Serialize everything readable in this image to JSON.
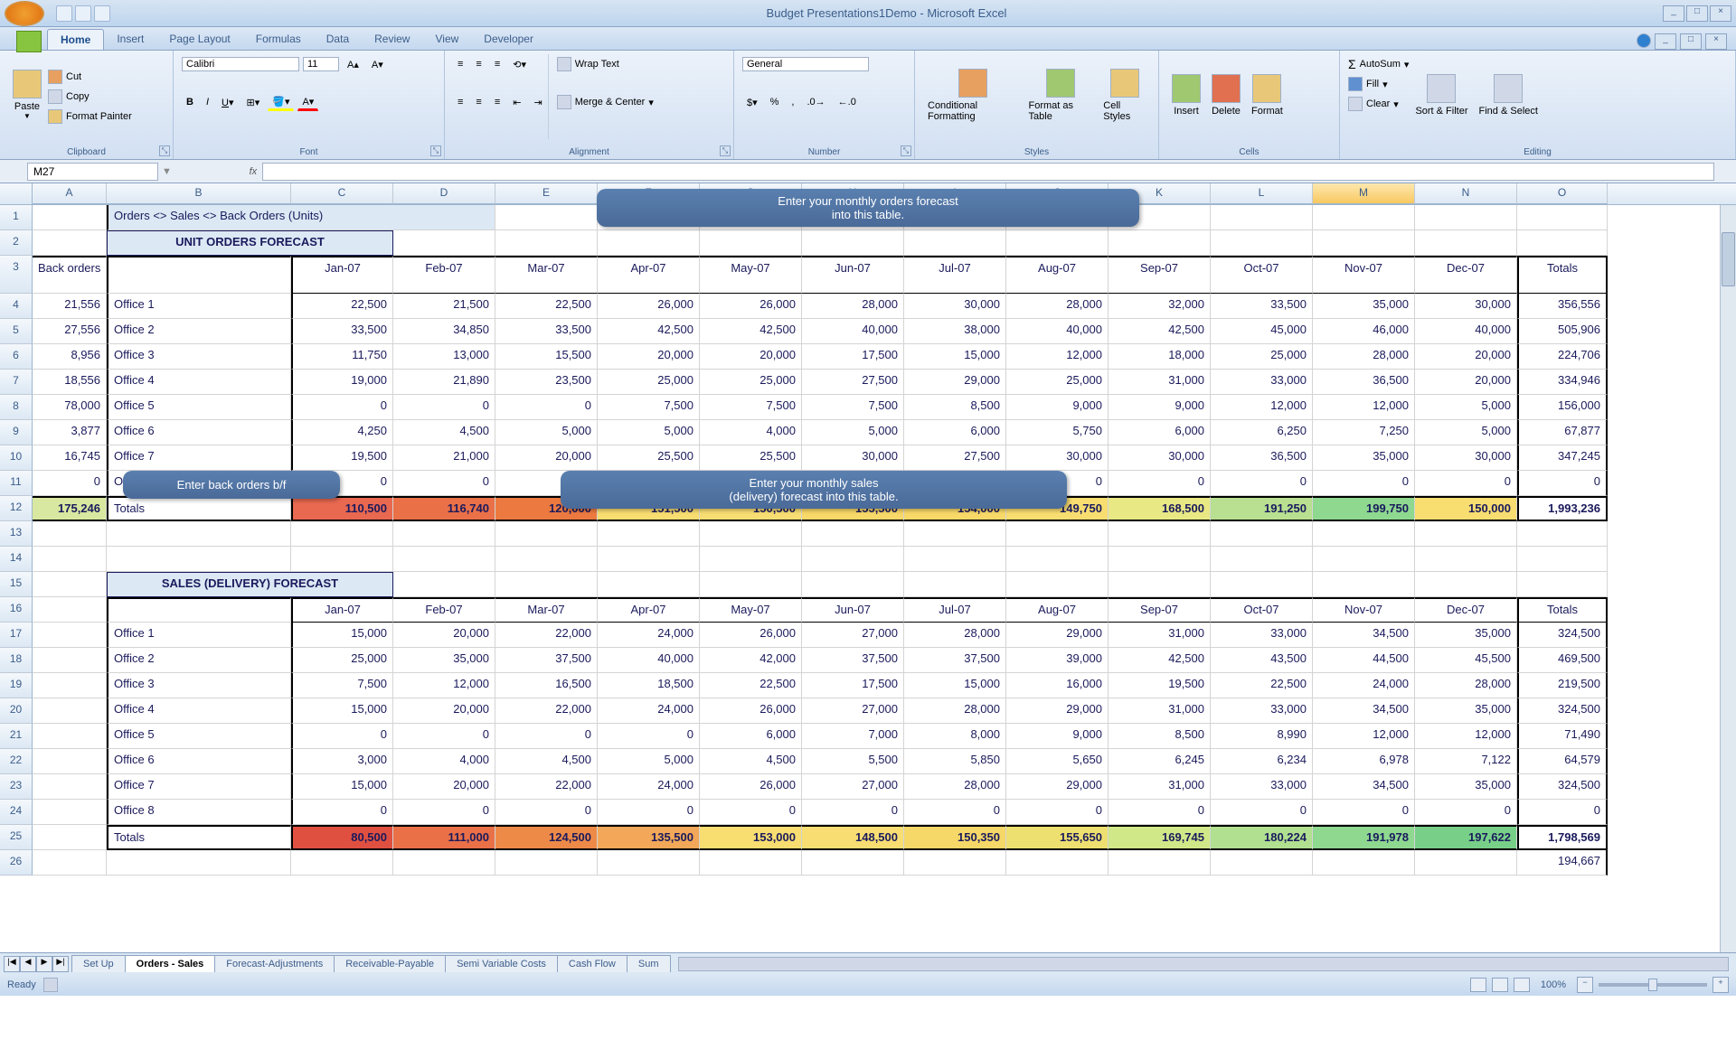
{
  "app": {
    "title": "Budget Presentations1Demo - Microsoft Excel",
    "ready": "Ready",
    "zoom": "100%"
  },
  "tabs": [
    "Home",
    "Insert",
    "Page Layout",
    "Formulas",
    "Data",
    "Review",
    "View",
    "Developer"
  ],
  "activeTab": "Home",
  "ribbon": {
    "clipboard": {
      "paste": "Paste",
      "cut": "Cut",
      "copy": "Copy",
      "fp": "Format Painter",
      "label": "Clipboard"
    },
    "font": {
      "name": "Calibri",
      "size": "11",
      "label": "Font"
    },
    "align": {
      "wrap": "Wrap Text",
      "merge": "Merge & Center",
      "label": "Alignment"
    },
    "number": {
      "fmt": "General",
      "label": "Number"
    },
    "styles": {
      "cf": "Conditional Formatting",
      "ft": "Format as Table",
      "cs": "Cell Styles",
      "label": "Styles"
    },
    "cells": {
      "ins": "Insert",
      "del": "Delete",
      "fmt": "Format",
      "label": "Cells"
    },
    "editing": {
      "as": "AutoSum",
      "fill": "Fill",
      "clear": "Clear",
      "sort": "Sort & Filter",
      "find": "Find & Select",
      "label": "Editing"
    }
  },
  "namebox": "M27",
  "cols": {
    "letters": [
      "A",
      "B",
      "C",
      "D",
      "E",
      "F",
      "G",
      "H",
      "I",
      "J",
      "K",
      "L",
      "M",
      "N",
      "O"
    ],
    "widths": [
      82,
      204,
      113,
      113,
      113,
      113,
      113,
      113,
      113,
      113,
      113,
      113,
      113,
      113,
      100
    ],
    "sel": "M"
  },
  "months": [
    "Jan-07",
    "Feb-07",
    "Mar-07",
    "Apr-07",
    "May-07",
    "Jun-07",
    "Jul-07",
    "Aug-07",
    "Sep-07",
    "Oct-07",
    "Nov-07",
    "Dec-07"
  ],
  "r1_title": "Orders <> Sales <> Back Orders (Units)",
  "r2_hdr": "UNIT ORDERS FORECAST",
  "r3_back": "Back orders",
  "r3_totals": "Totals",
  "callout1": "Enter your monthly orders forecast\ninto this table.",
  "callout2": "Enter back orders b/f",
  "callout3": "Enter your monthly sales\n(delivery) forecast into this table.",
  "orders": {
    "offices": [
      "Office 1",
      "Office 2",
      "Office 3",
      "Office 4",
      "Office 5",
      "Office 6",
      "Office 7",
      "Office 8"
    ],
    "back": [
      21556,
      27556,
      8956,
      18556,
      78000,
      3877,
      16745,
      0
    ],
    "data": [
      [
        22500,
        21500,
        22500,
        26000,
        26000,
        28000,
        30000,
        28000,
        32000,
        33500,
        35000,
        30000,
        356556
      ],
      [
        33500,
        34850,
        33500,
        42500,
        42500,
        40000,
        38000,
        40000,
        42500,
        45000,
        46000,
        40000,
        505906
      ],
      [
        11750,
        13000,
        15500,
        20000,
        20000,
        17500,
        15000,
        12000,
        18000,
        25000,
        28000,
        20000,
        224706
      ],
      [
        19000,
        21890,
        23500,
        25000,
        25000,
        27500,
        29000,
        25000,
        31000,
        33000,
        36500,
        20000,
        334946
      ],
      [
        0,
        0,
        0,
        7500,
        7500,
        7500,
        8500,
        9000,
        9000,
        12000,
        12000,
        5000,
        156000
      ],
      [
        4250,
        4500,
        5000,
        5000,
        4000,
        5000,
        6000,
        5750,
        6000,
        6250,
        7250,
        5000,
        67877
      ],
      [
        19500,
        21000,
        20000,
        25500,
        25500,
        30000,
        27500,
        30000,
        30000,
        36500,
        35000,
        30000,
        347245
      ],
      [
        0,
        0,
        0,
        0,
        0,
        0,
        0,
        0,
        0,
        0,
        0,
        0,
        0
      ]
    ],
    "backTotal": 175246,
    "totalsLabel": "Totals",
    "totals": [
      110500,
      116740,
      120000,
      151500,
      150500,
      155500,
      154000,
      149750,
      168500,
      191250,
      199750,
      150000,
      1993236
    ],
    "totalColors": [
      "#e86850",
      "#ea7048",
      "#ec7a40",
      "#f8dd70",
      "#f8de72",
      "#f8d868",
      "#f8d968",
      "#f8dd70",
      "#e8e884",
      "#b8e090",
      "#8ed890",
      "#f8dd70"
    ]
  },
  "r15_hdr": "SALES (DELIVERY) FORECAST",
  "sales": {
    "offices": [
      "Office 1",
      "Office 2",
      "Office 3",
      "Office 4",
      "Office 5",
      "Office 6",
      "Office 7",
      "Office 8"
    ],
    "data": [
      [
        15000,
        20000,
        22000,
        24000,
        26000,
        27000,
        28000,
        29000,
        31000,
        33000,
        34500,
        35000,
        324500
      ],
      [
        25000,
        35000,
        37500,
        40000,
        42000,
        37500,
        37500,
        39000,
        42500,
        43500,
        44500,
        45500,
        469500
      ],
      [
        7500,
        12000,
        16500,
        18500,
        22500,
        17500,
        15000,
        16000,
        19500,
        22500,
        24000,
        28000,
        219500
      ],
      [
        15000,
        20000,
        22000,
        24000,
        26000,
        27000,
        28000,
        29000,
        31000,
        33000,
        34500,
        35000,
        324500
      ],
      [
        0,
        0,
        0,
        0,
        6000,
        7000,
        8000,
        9000,
        8500,
        8990,
        12000,
        12000,
        71490
      ],
      [
        3000,
        4000,
        4500,
        5000,
        4500,
        5500,
        5850,
        5650,
        6245,
        6234,
        6978,
        7122,
        64579
      ],
      [
        15000,
        20000,
        22000,
        24000,
        26000,
        27000,
        28000,
        29000,
        31000,
        33000,
        34500,
        35000,
        324500
      ],
      [
        0,
        0,
        0,
        0,
        0,
        0,
        0,
        0,
        0,
        0,
        0,
        0,
        0
      ]
    ],
    "totalsLabel": "Totals",
    "totals": [
      80500,
      111000,
      124500,
      135500,
      153000,
      148500,
      150350,
      155650,
      169745,
      180224,
      191978,
      197622,
      1798569
    ],
    "totalColors": [
      "#e05040",
      "#ea7048",
      "#ee8a48",
      "#f2a858",
      "#f8dd70",
      "#f8de72",
      "#f6d868",
      "#eee070",
      "#d0e888",
      "#b0e090",
      "#8ed890",
      "#78d088"
    ],
    "r26": 194667
  },
  "sheets": [
    "Set Up",
    "Orders - Sales",
    "Forecast-Adjustments",
    "Receivable-Payable",
    "Semi Variable Costs",
    "Cash Flow",
    "Sum"
  ],
  "activeSheet": "Orders - Sales"
}
